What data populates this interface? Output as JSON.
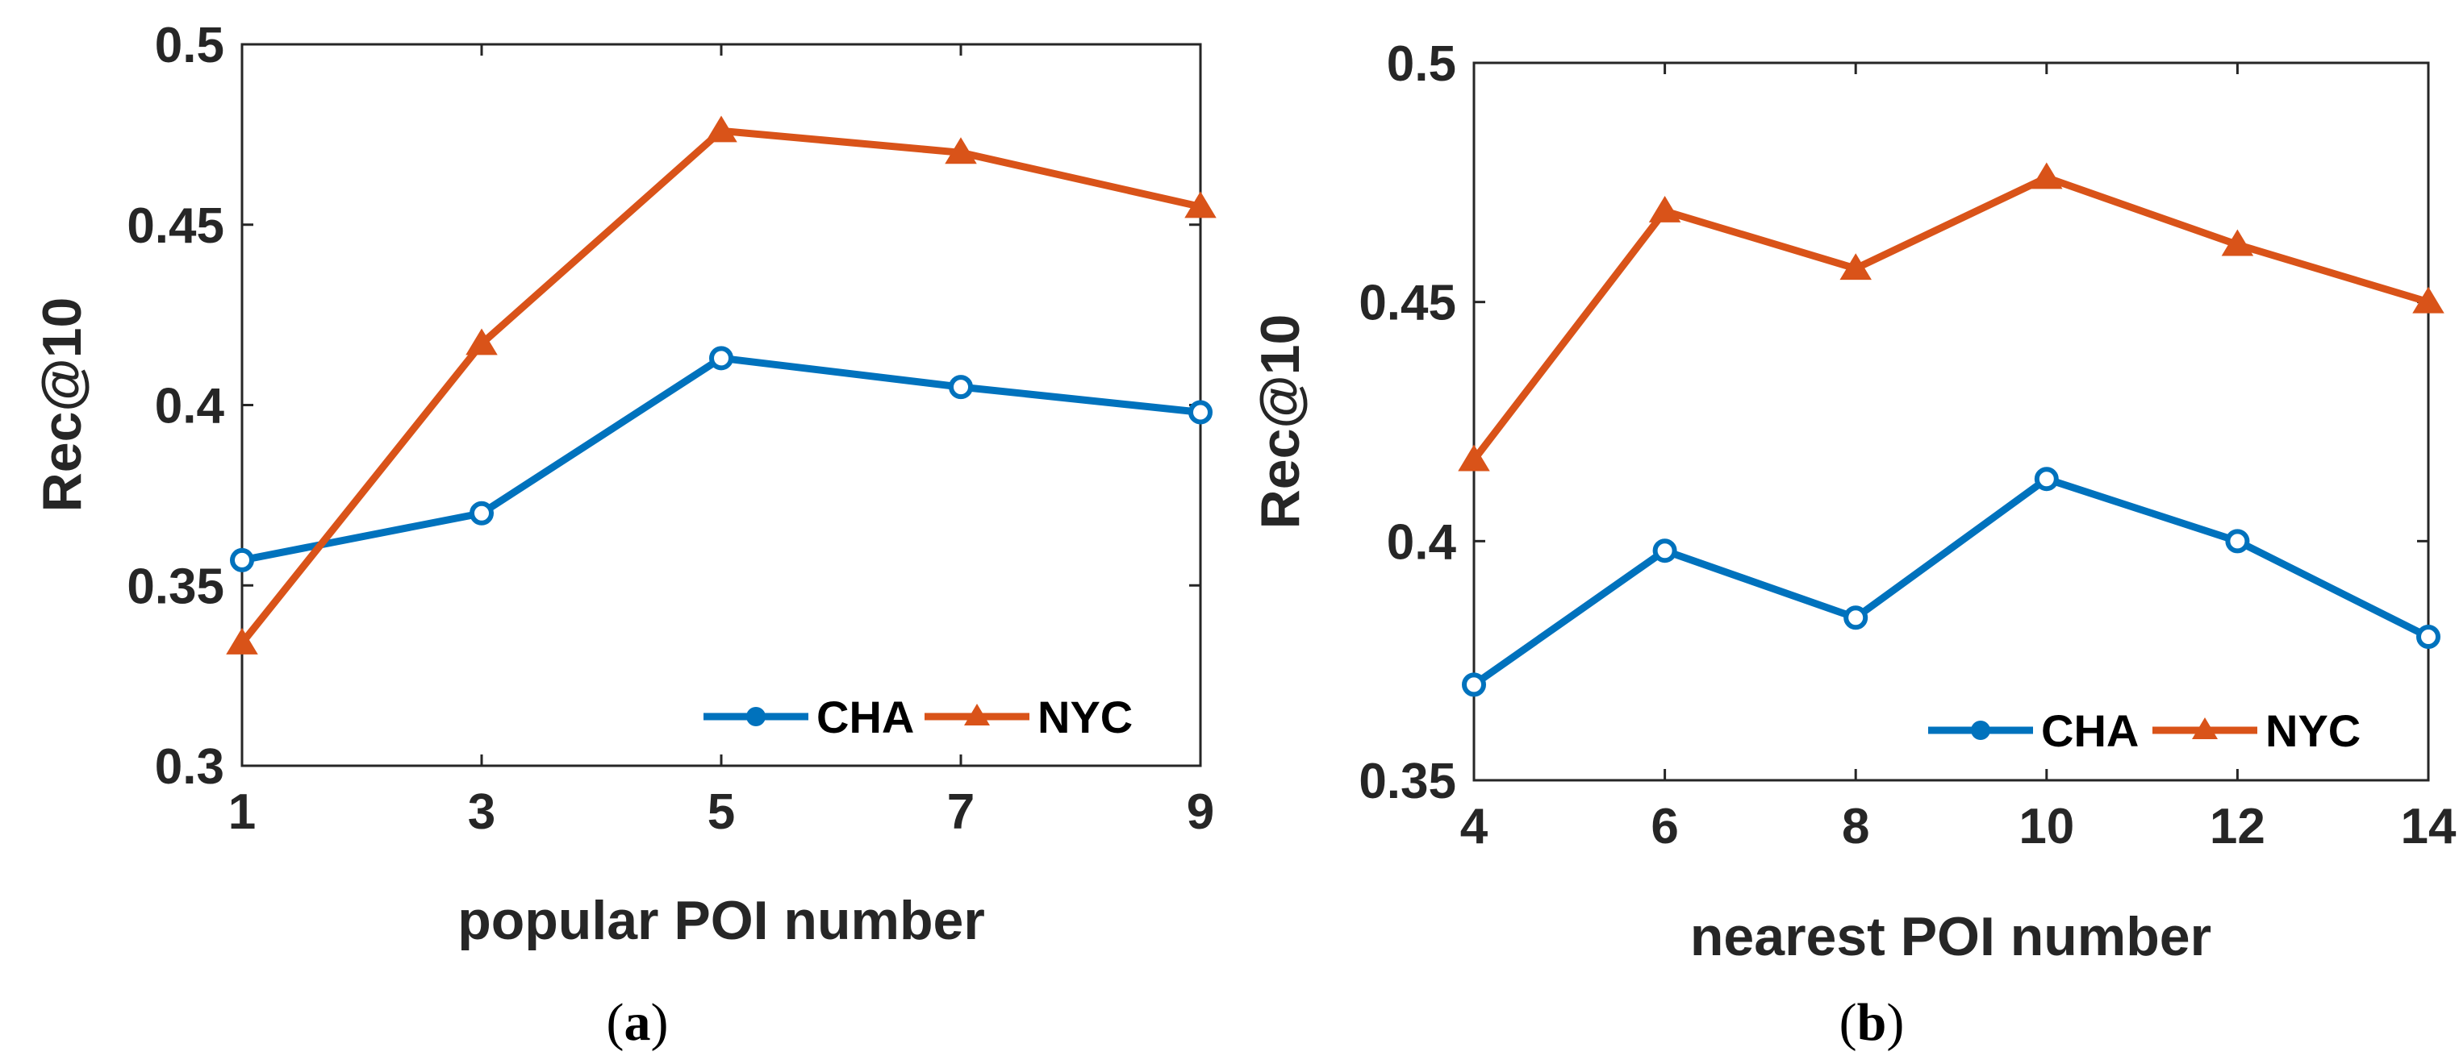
{
  "chart_data": [
    {
      "type": "line",
      "panel": "a",
      "caption": {
        "open": "(",
        "letter": "a",
        "close": ")"
      },
      "xlabel": "popular POI number",
      "ylabel": "Rec@10",
      "x": [
        1,
        3,
        5,
        7,
        9
      ],
      "xticks": [
        "1",
        "3",
        "5",
        "7",
        "9"
      ],
      "xlim": [
        1,
        9
      ],
      "ylim": [
        0.3,
        0.5
      ],
      "yticks": [
        "0.3",
        "0.35",
        "0.4",
        "0.45",
        "0.5"
      ],
      "yticks_values": [
        0.3,
        0.35,
        0.4,
        0.45,
        0.5
      ],
      "series": [
        {
          "name": "CHA",
          "marker": "circle",
          "values": [
            0.357,
            0.37,
            0.413,
            0.405,
            0.398
          ]
        },
        {
          "name": "NYC",
          "marker": "triangle",
          "values": [
            0.334,
            0.417,
            0.476,
            0.47,
            0.455
          ]
        }
      ],
      "legend_position": "bottom-right"
    },
    {
      "type": "line",
      "panel": "b",
      "caption": {
        "open": "(",
        "letter": "b",
        "close": ")"
      },
      "xlabel": "nearest POI number",
      "ylabel": "Rec@10",
      "x": [
        4,
        6,
        8,
        10,
        12,
        14
      ],
      "xticks": [
        "4",
        "6",
        "8",
        "10",
        "12",
        "14"
      ],
      "xlim": [
        4,
        14
      ],
      "ylim": [
        0.35,
        0.5
      ],
      "yticks": [
        "0.35",
        "0.4",
        "0.45",
        "0.5"
      ],
      "yticks_values": [
        0.35,
        0.4,
        0.45,
        0.5
      ],
      "series": [
        {
          "name": "CHA",
          "marker": "circle",
          "values": [
            0.37,
            0.398,
            0.384,
            0.413,
            0.4,
            0.38
          ]
        },
        {
          "name": "NYC",
          "marker": "triangle",
          "values": [
            0.417,
            0.469,
            0.457,
            0.476,
            0.462,
            0.45
          ]
        }
      ],
      "legend_position": "bottom-right"
    }
  ],
  "colors": {
    "CHA": "#0072BD",
    "NYC": "#D95319",
    "axis": "#262626"
  }
}
